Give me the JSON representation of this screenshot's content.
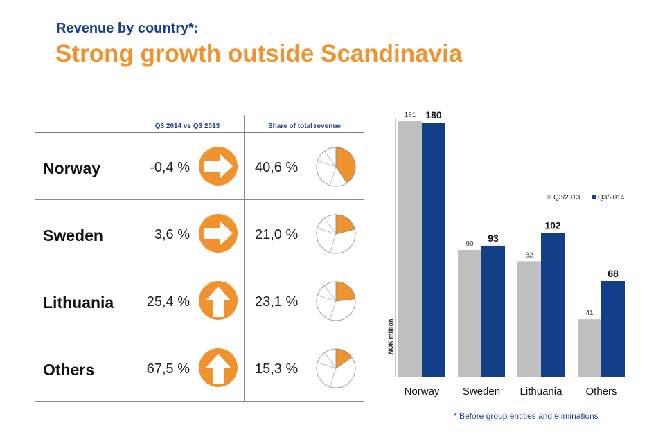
{
  "header": {
    "subtitle": "Revenue by country*:",
    "title": "Strong growth outside Scandinavia"
  },
  "table": {
    "col_growth": "Q3 2014 vs Q3 2013",
    "col_share": "Share of total revenue",
    "rows": [
      {
        "country": "Norway",
        "growth": "-0,4 %",
        "growth_icon": "right-arrow-icon",
        "share": "40,6 %",
        "share_value": 40.6
      },
      {
        "country": "Sweden",
        "growth": "3,6 %",
        "growth_icon": "right-arrow-icon",
        "share": "21,0 %",
        "share_value": 21.0
      },
      {
        "country": "Lithuania",
        "growth": "25,4 %",
        "growth_icon": "up-arrow-icon",
        "share": "23,1 %",
        "share_value": 23.1
      },
      {
        "country": "Others",
        "growth": "67,5 %",
        "growth_icon": "up-arrow-icon",
        "share": "15,3 %",
        "share_value": 15.3
      }
    ]
  },
  "colors": {
    "orange": "#f0922e",
    "navy": "#1b3f8b",
    "bar2013": "#bfbfbf",
    "bar2014": "#123f87"
  },
  "chart_data": {
    "type": "bar",
    "categories": [
      "Norway",
      "Sweden",
      "Lithuania",
      "Others"
    ],
    "series": [
      {
        "name": "Q3/2013",
        "values": [
          181,
          90,
          82,
          41
        ]
      },
      {
        "name": "Q3/2014",
        "values": [
          180,
          93,
          102,
          68
        ]
      }
    ],
    "ylabel": "NOK million",
    "ylim": [
      0,
      181
    ],
    "legend": "right"
  },
  "footnote": "* Before group entities and eliminations"
}
